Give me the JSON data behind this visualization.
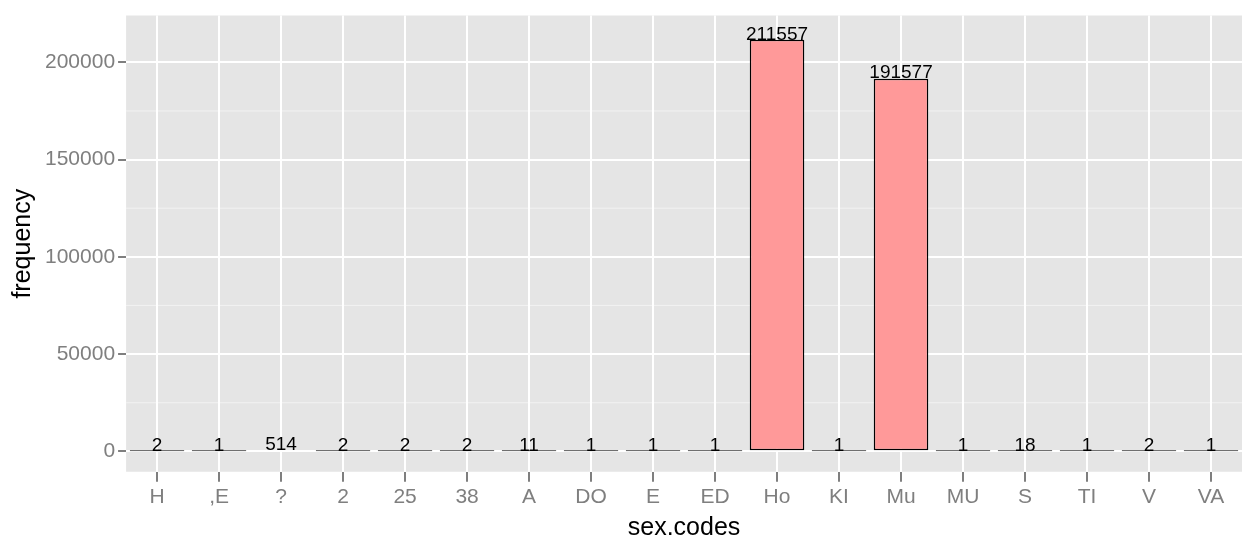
{
  "chart_data": {
    "type": "bar",
    "xlabel": "sex.codes",
    "ylabel": "frequency",
    "categories": [
      "H",
      ",E",
      "?",
      "2",
      "25",
      "38",
      "A",
      "DO",
      "E",
      "ED",
      "Ho",
      "KI",
      "Mu",
      "MU",
      "S",
      "TI",
      "V",
      "VA"
    ],
    "values": [
      2,
      1,
      514,
      2,
      2,
      2,
      11,
      1,
      1,
      1,
      211557,
      1,
      191577,
      1,
      18,
      1,
      2,
      1
    ],
    "colors": [
      "#000000",
      "#000000",
      "#000000",
      "#000000",
      "#000000",
      "#000000",
      "#000000",
      "#000000",
      "#000000",
      "#000000",
      "#ff9999",
      "#000000",
      "#ff9999",
      "#000000",
      "#000000",
      "#000000",
      "#000000",
      "#000000"
    ],
    "ylim": [
      -10500,
      224000
    ],
    "yticks": [
      0,
      50000,
      100000,
      150000,
      200000
    ],
    "grid": true,
    "data_labels": true
  }
}
